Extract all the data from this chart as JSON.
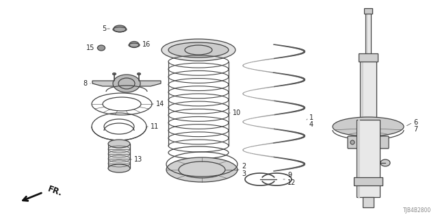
{
  "bg_color": "#ffffff",
  "part_color": "#444444",
  "diagram_code": "TJB4B2800",
  "fr_label": "FR.",
  "figsize": [
    6.4,
    3.2
  ],
  "dpi": 100
}
